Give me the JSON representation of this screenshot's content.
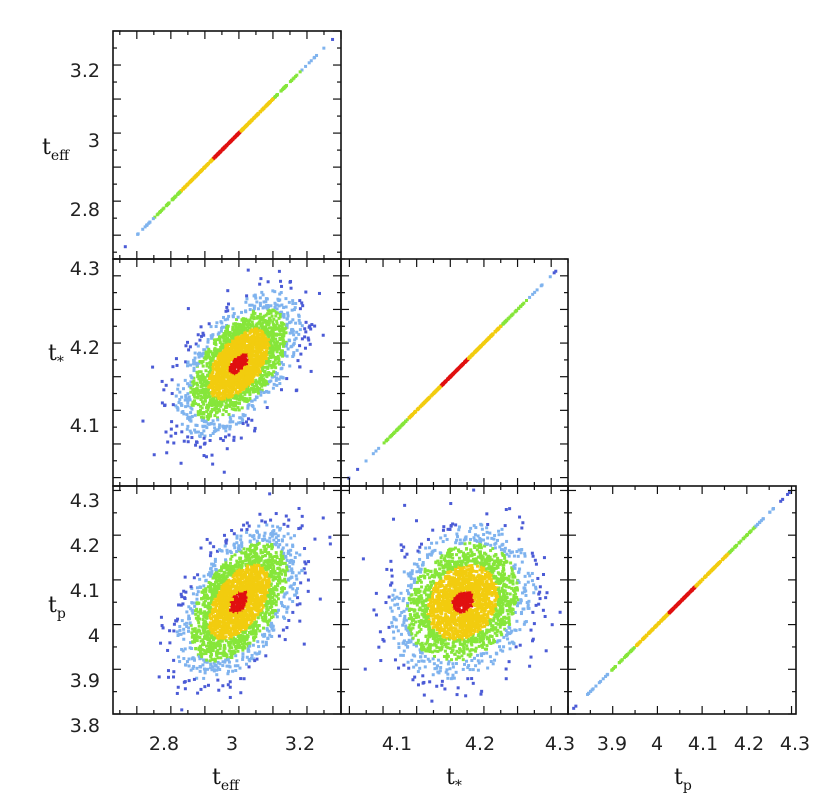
{
  "chart_data": {
    "type": "scatter",
    "layout": "corner-plot",
    "parameters": [
      {
        "id": "teff",
        "symbol": "t",
        "subscript": "eff",
        "range": [
          2.63,
          3.3
        ],
        "ticks": [
          2.8,
          3,
          3.2
        ]
      },
      {
        "id": "tstar",
        "symbol": "t",
        "subscript": "*",
        "range": [
          4.03,
          4.3
        ],
        "ticks": [
          4.1,
          4.2,
          4.3
        ]
      },
      {
        "id": "tp",
        "symbol": "t",
        "subscript": "p",
        "range": [
          3.8,
          4.31
        ],
        "ticks": [
          3.8,
          3.9,
          4,
          4.1,
          4.2,
          4.3
        ]
      }
    ],
    "density_colors": [
      "#4b5bd6",
      "#7fb3ee",
      "#86e63a",
      "#f2cc0f",
      "#e01010"
    ],
    "panels": [
      {
        "row": 0,
        "col": 0,
        "kind": "diagonal",
        "x_param": "teff",
        "y_param": "teff",
        "xlim": [
          2.63,
          3.3
        ],
        "ylim": [
          2.63,
          3.3
        ],
        "y_ticks": [
          2.8,
          3,
          3.2
        ]
      },
      {
        "row": 1,
        "col": 0,
        "kind": "scatter",
        "x_param": "teff",
        "y_param": "tstar",
        "xlim": [
          2.63,
          3.3
        ],
        "ylim": [
          4.03,
          4.3
        ],
        "y_ticks": [
          4.1,
          4.2,
          4.3
        ],
        "center": [
          3.0,
          4.175
        ],
        "sd": [
          0.075,
          0.035
        ],
        "corr": 0.55
      },
      {
        "row": 1,
        "col": 1,
        "kind": "diagonal",
        "x_param": "tstar",
        "y_param": "tstar",
        "xlim": [
          4.03,
          4.3
        ],
        "ylim": [
          4.03,
          4.3
        ]
      },
      {
        "row": 2,
        "col": 0,
        "kind": "scatter",
        "x_param": "teff",
        "y_param": "tp",
        "xlim": [
          2.63,
          3.3
        ],
        "ylim": [
          3.8,
          4.31
        ],
        "y_ticks": [
          3.8,
          3.9,
          4,
          4.1,
          4.2,
          4.3
        ],
        "x_ticks": [
          2.8,
          3,
          3.2
        ],
        "center": [
          3.0,
          4.05
        ],
        "sd": [
          0.075,
          0.07
        ],
        "corr": 0.5
      },
      {
        "row": 2,
        "col": 1,
        "kind": "scatter",
        "x_param": "tstar",
        "y_param": "tp",
        "xlim": [
          4.03,
          4.3
        ],
        "ylim": [
          3.8,
          4.31
        ],
        "x_ticks": [
          4.1,
          4.2,
          4.3
        ],
        "center": [
          4.175,
          4.05
        ],
        "sd": [
          0.035,
          0.07
        ],
        "corr": 0.2
      },
      {
        "row": 2,
        "col": 2,
        "kind": "diagonal",
        "x_param": "tp",
        "y_param": "tp",
        "xlim": [
          3.8,
          4.31
        ],
        "ylim": [
          3.8,
          4.31
        ],
        "x_ticks": [
          3.9,
          4,
          4.1,
          4.2,
          4.3
        ]
      }
    ],
    "x_tick_labels": {
      "col0": [
        "2.8",
        "3",
        "3.2"
      ],
      "col1": [
        "4.1",
        "4.2",
        "4.3"
      ],
      "col2": [
        "3.9",
        "4",
        "4.1",
        "4.2",
        "4.3"
      ]
    },
    "y_tick_labels": {
      "row0": [
        "3.2",
        "3",
        "2.8"
      ],
      "row1": [
        "4.3",
        "4.2",
        "4.1"
      ],
      "row2": [
        "4.3",
        "4.2",
        "4.1",
        "4",
        "3.9",
        "3.8"
      ]
    },
    "axis_labels": {
      "row0": {
        "base": "t",
        "sub": "eff"
      },
      "row1": {
        "base": "t",
        "sub": "*"
      },
      "row2": {
        "base": "t",
        "sub": "p"
      },
      "col0": {
        "base": "t",
        "sub": "eff"
      },
      "col1": {
        "base": "t",
        "sub": "*"
      },
      "col2": {
        "base": "t",
        "sub": "p"
      }
    }
  }
}
